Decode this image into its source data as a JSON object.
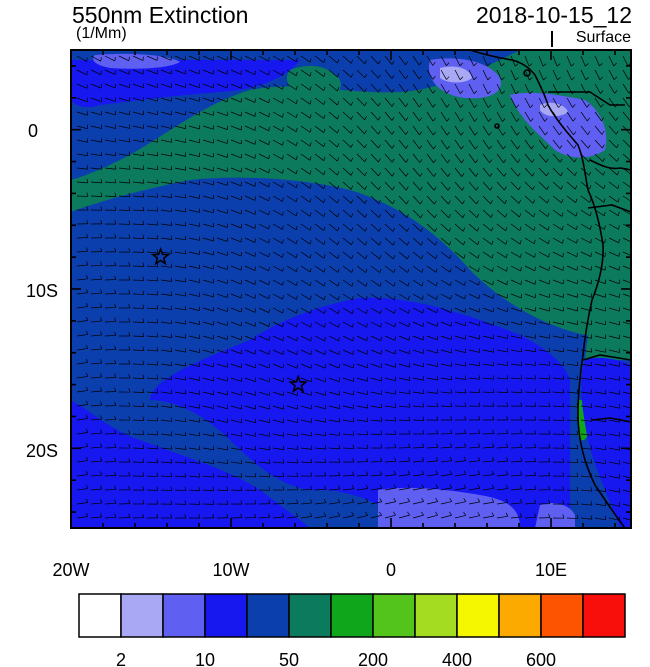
{
  "header": {
    "title": "550nm Extinction",
    "units": "(1/Mm)",
    "datetime": "2018-10-15_12",
    "level": "Surface"
  },
  "map": {
    "x_ticks": [
      "20W",
      "10W",
      "0",
      "10E"
    ],
    "y_ticks": [
      "0",
      "10S",
      "20S"
    ],
    "region": "South-east Atlantic, off south-west Africa",
    "markers": [
      {
        "name": "star-marker-1",
        "lon": -14.4,
        "lat": -8.0
      },
      {
        "name": "star-marker-2",
        "lon": -5.8,
        "lat": -16.0
      }
    ]
  },
  "colorbar": {
    "colors": [
      "#ffffff",
      "#a8a8f5",
      "#5f5ff2",
      "#1717f0",
      "#0c3fae",
      "#0b7a5d",
      "#10a61c",
      "#52c41c",
      "#a4dc22",
      "#f4f700",
      "#fcaa00",
      "#fc5400",
      "#f80f0c"
    ],
    "labels": [
      {
        "text": "2",
        "after_box": 1
      },
      {
        "text": "10",
        "after_box": 3
      },
      {
        "text": "50",
        "after_box": 5
      },
      {
        "text": "200",
        "after_box": 7
      },
      {
        "text": "400",
        "after_box": 9
      },
      {
        "text": "600",
        "after_box": 11
      }
    ]
  }
}
